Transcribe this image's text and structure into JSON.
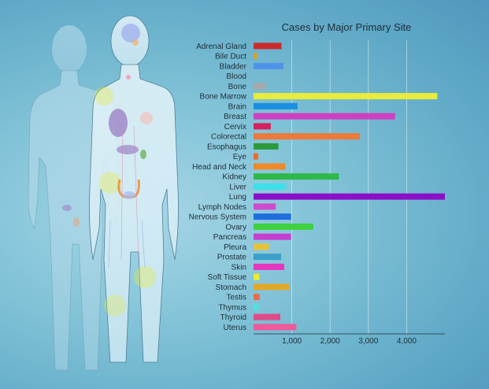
{
  "chart_data": {
    "type": "bar",
    "orientation": "horizontal",
    "title": "Cases by Major Primary Site",
    "xlabel": "",
    "ylabel": "",
    "xlim": [
      0,
      5000
    ],
    "xticks": [
      1000,
      2000,
      3000,
      4000
    ],
    "xtick_labels": [
      "1,000",
      "2,000",
      "3,000",
      "4,000"
    ],
    "grid": true,
    "categories": [
      "Adrenal Gland",
      "Bile Duct",
      "Bladder",
      "Blood",
      "Bone",
      "Bone Marrow",
      "Brain",
      "Breast",
      "Cervix",
      "Colorectal",
      "Esophagus",
      "Eye",
      "Head and Neck",
      "Kidney",
      "Liver",
      "Lung",
      "Lymph Nodes",
      "Nervous System",
      "Ovary",
      "Pancreas",
      "Pleura",
      "Prostate",
      "Skin",
      "Soft Tissue",
      "Stomach",
      "Testis",
      "Thymus",
      "Thyroid",
      "Uterus"
    ],
    "values": [
      730,
      90,
      780,
      0,
      320,
      4800,
      1150,
      3700,
      450,
      2780,
      650,
      120,
      830,
      2230,
      850,
      5000,
      580,
      980,
      1560,
      980,
      400,
      720,
      800,
      150,
      940,
      160,
      120,
      700,
      1120
    ],
    "colors": [
      "#cc2b2b",
      "#d8a21c",
      "#4f93e8",
      "#8fbdd6",
      "#a8a8a8",
      "#e8ec3a",
      "#1a8fe0",
      "#cf3fc1",
      "#d4225e",
      "#ec7a3a",
      "#2b9a3a",
      "#ef6a2c",
      "#ef8a2a",
      "#2fb84a",
      "#3de0e8",
      "#8a10c8",
      "#d04ad0",
      "#1f6ee0",
      "#3ed140",
      "#c53ed0",
      "#e8c23a",
      "#3aa0c9",
      "#e636c0",
      "#ecec32",
      "#e0a82a",
      "#ec6a4a",
      "#46e8dc",
      "#e04a86",
      "#ef5a9a"
    ]
  },
  "silhouette": {
    "organ_colors": [
      "#a7b8ee",
      "#9c83c6",
      "#f0c7c5",
      "#e8ec3a",
      "#f0b47a",
      "#7ab86b",
      "#ef8a2a"
    ]
  }
}
